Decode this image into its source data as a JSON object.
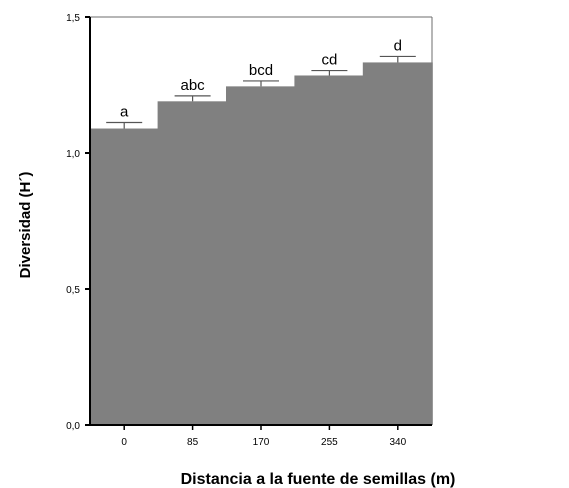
{
  "chart_data": {
    "type": "bar",
    "title": "",
    "xlabel": "Distancia a la fuente de semillas (m)",
    "ylabel": "Diversidad (H´)",
    "categories": [
      "0",
      "85",
      "170",
      "255",
      "340"
    ],
    "values": [
      1.09,
      1.19,
      1.245,
      1.285,
      1.333
    ],
    "errors": [
      0.022,
      0.02,
      0.02,
      0.018,
      0.022
    ],
    "significance_labels": [
      "a",
      "abc",
      "bcd",
      "cd",
      "d"
    ],
    "ylim": [
      0,
      1.5
    ],
    "yticks": [
      0,
      0.5,
      1.0,
      1.5
    ],
    "ytick_labels": [
      "0,0",
      "0,5",
      "1,0",
      "1,5"
    ],
    "grid": false,
    "bar_color": "#808080",
    "error_bar_color": "#555555"
  }
}
